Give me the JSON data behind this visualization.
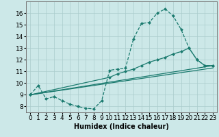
{
  "xlabel": "Humidex (Indice chaleur)",
  "bg_color": "#cce8e8",
  "line_color": "#1a7a6e",
  "xlim": [
    -0.5,
    23.5
  ],
  "ylim": [
    7.5,
    17.0
  ],
  "yticks": [
    8,
    9,
    10,
    11,
    12,
    13,
    14,
    15,
    16
  ],
  "xticks": [
    0,
    1,
    2,
    3,
    4,
    5,
    6,
    7,
    8,
    9,
    10,
    11,
    12,
    13,
    14,
    15,
    16,
    17,
    18,
    19,
    20,
    21,
    22,
    23
  ],
  "line1_x": [
    0,
    1,
    2,
    3,
    4,
    5,
    6,
    7,
    8,
    9,
    10,
    11,
    12,
    13,
    14,
    15,
    16,
    17,
    18,
    19,
    20,
    21,
    22,
    23
  ],
  "line1_y": [
    9.0,
    9.8,
    8.65,
    8.85,
    8.5,
    8.2,
    8.0,
    7.85,
    7.8,
    8.5,
    11.1,
    11.2,
    11.3,
    13.8,
    15.1,
    15.2,
    16.0,
    16.35,
    15.75,
    14.6,
    13.0,
    12.0,
    11.5,
    11.5
  ],
  "line2_x": [
    0,
    10,
    11,
    12,
    13,
    14,
    15,
    16,
    17,
    18,
    19,
    20,
    21,
    22,
    23
  ],
  "line2_y": [
    9.0,
    10.5,
    10.8,
    11.0,
    11.2,
    11.5,
    11.8,
    12.0,
    12.2,
    12.5,
    12.7,
    13.0,
    12.0,
    11.5,
    11.5
  ],
  "line3_x": [
    0,
    23
  ],
  "line3_y": [
    9.0,
    11.5
  ],
  "line4_x": [
    0,
    23
  ],
  "line4_y": [
    9.0,
    11.5
  ],
  "grid_color": "#aacccc",
  "xlabel_fontsize": 7,
  "tick_fontsize": 6.5
}
